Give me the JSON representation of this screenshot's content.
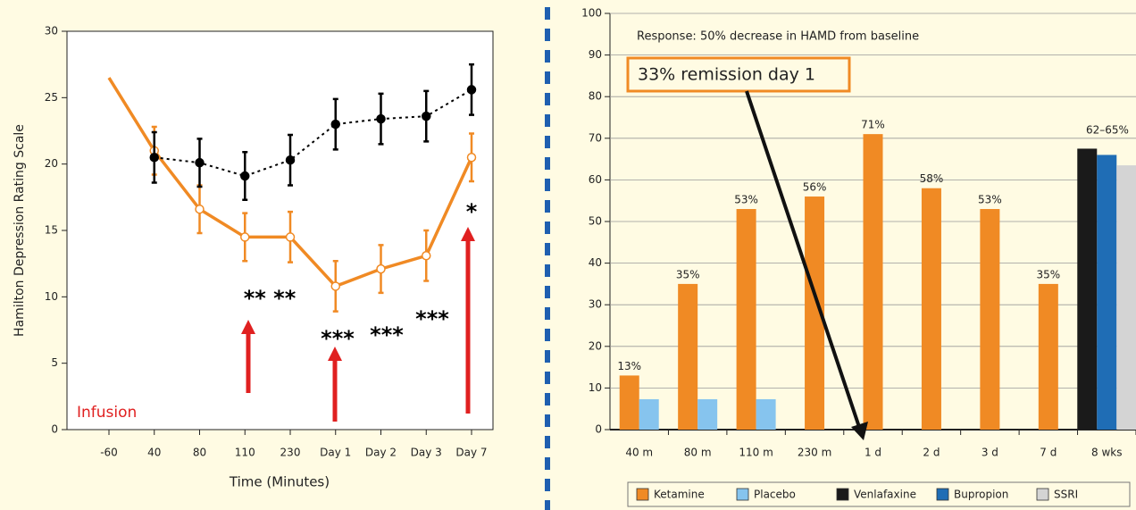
{
  "chart_data": [
    {
      "type": "line",
      "categories": [
        "-60",
        "40",
        "80",
        "110",
        "230",
        "Day 1",
        "Day 2",
        "Day 3",
        "Day 7"
      ],
      "series": [
        {
          "color": "#f08a24",
          "values": [
            26.5,
            21,
            16.6,
            14.5,
            14.5,
            10.8,
            12.1,
            13.1,
            20.5
          ],
          "errors": [
            null,
            1.8,
            1.8,
            1.8,
            1.9,
            1.9,
            1.8,
            1.9,
            1.8
          ]
        },
        {
          "color": "#000000",
          "dashed": true,
          "values": [
            null,
            20.5,
            20.1,
            19.1,
            20.3,
            23.0,
            23.4,
            23.6,
            25.6
          ],
          "errors": [
            null,
            1.9,
            1.8,
            1.8,
            1.9,
            1.9,
            1.9,
            1.9,
            1.9
          ]
        }
      ],
      "ylim": [
        0,
        30
      ],
      "yticks": [
        0,
        5,
        10,
        15,
        20,
        25,
        30
      ],
      "ylabel": "Hamilton Depression Rating Scale",
      "xlabel": "Time (Minutes)",
      "annotations": [
        "** **",
        "***",
        "***",
        "***",
        "*",
        "Infusion"
      ]
    },
    {
      "type": "bar",
      "categories": [
        "40 m",
        "80 m",
        "110 m",
        "230 m",
        "1 d",
        "2 d",
        "3 d",
        "7 d",
        "8 wks"
      ],
      "series": [
        {
          "name": "Ketamine",
          "color": "#f08a24",
          "values": [
            13,
            35,
            53,
            56,
            71,
            58,
            53,
            35,
            null
          ],
          "value_labels": [
            "13%",
            "35%",
            "53%",
            "56%",
            "71%",
            "58%",
            "53%",
            "35%",
            null
          ]
        },
        {
          "name": "Placebo",
          "color": "#86c4ee",
          "values": [
            7.3,
            7.3,
            7.3,
            null,
            null,
            null,
            null,
            null,
            null
          ]
        },
        {
          "name": "Venlafaxine",
          "color": "#1a1a1a",
          "values": [
            null,
            null,
            null,
            null,
            null,
            null,
            null,
            null,
            67.5
          ]
        },
        {
          "name": "Bupropion",
          "color": "#1f6db5",
          "values": [
            null,
            null,
            null,
            null,
            null,
            null,
            null,
            null,
            66
          ]
        },
        {
          "name": "SSRI",
          "color": "#d4d4d4",
          "values": [
            null,
            null,
            null,
            null,
            null,
            null,
            null,
            null,
            63.5
          ]
        }
      ],
      "ylim": [
        0,
        100
      ],
      "yticks": [
        0,
        10,
        20,
        30,
        40,
        50,
        60,
        70,
        80,
        90,
        100
      ],
      "grid": true,
      "legend": "bottom",
      "annotations": [
        "Response: 50% decrease in HAMD from baseline",
        "33% remission day 1",
        "62–65%"
      ]
    }
  ]
}
